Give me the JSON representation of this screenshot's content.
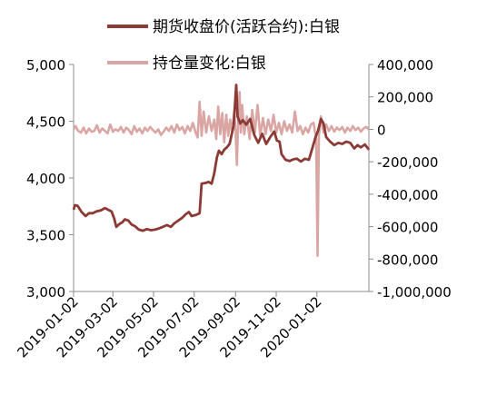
{
  "chart_data": {
    "type": "line",
    "title": "",
    "legend_position": "top",
    "grid": false,
    "x_axis": {
      "type": "date",
      "range": [
        "2019-01-02",
        "2020-03-20"
      ],
      "tick_labels": [
        "2019-01-02",
        "2019-03-02",
        "2019-05-02",
        "2019-07-02",
        "2019-09-02",
        "2019-11-02",
        "2020-01-02"
      ]
    },
    "y_left": {
      "range": [
        3000,
        5000
      ],
      "tick_labels": [
        "3,000",
        "3,500",
        "4,000",
        "4,500",
        "5,000"
      ]
    },
    "y_right": {
      "range": [
        -1000000,
        400000
      ],
      "tick_labels": [
        "-1,000,000",
        "-800,000",
        "-600,000",
        "-400,000",
        "-200,000",
        "0",
        "200,000",
        "400,000"
      ]
    },
    "series": [
      {
        "name": "期货收盘价(活跃合约):白银",
        "axis": "left",
        "color": "#8B3A36",
        "points": [
          [
            "2019-01-02",
            3720
          ],
          [
            "2019-01-04",
            3760
          ],
          [
            "2019-01-08",
            3755
          ],
          [
            "2019-01-14",
            3700
          ],
          [
            "2019-01-20",
            3665
          ],
          [
            "2019-01-25",
            3690
          ],
          [
            "2019-01-31",
            3690
          ],
          [
            "2019-02-05",
            3705
          ],
          [
            "2019-02-12",
            3715
          ],
          [
            "2019-02-18",
            3735
          ],
          [
            "2019-02-23",
            3720
          ],
          [
            "2019-02-28",
            3705
          ],
          [
            "2019-03-04",
            3640
          ],
          [
            "2019-03-07",
            3570
          ],
          [
            "2019-03-12",
            3595
          ],
          [
            "2019-03-16",
            3610
          ],
          [
            "2019-03-20",
            3635
          ],
          [
            "2019-03-25",
            3625
          ],
          [
            "2019-03-30",
            3590
          ],
          [
            "2019-04-04",
            3575
          ],
          [
            "2019-04-10",
            3545
          ],
          [
            "2019-04-16",
            3535
          ],
          [
            "2019-04-22",
            3550
          ],
          [
            "2019-04-28",
            3540
          ],
          [
            "2019-05-04",
            3545
          ],
          [
            "2019-05-10",
            3555
          ],
          [
            "2019-05-16",
            3570
          ],
          [
            "2019-05-22",
            3585
          ],
          [
            "2019-05-28",
            3570
          ],
          [
            "2019-06-02",
            3600
          ],
          [
            "2019-06-08",
            3625
          ],
          [
            "2019-06-14",
            3650
          ],
          [
            "2019-06-19",
            3680
          ],
          [
            "2019-06-24",
            3700
          ],
          [
            "2019-06-28",
            3665
          ],
          [
            "2019-07-05",
            3675
          ],
          [
            "2019-07-10",
            3690
          ],
          [
            "2019-07-13",
            3950
          ],
          [
            "2019-07-18",
            3955
          ],
          [
            "2019-07-24",
            3965
          ],
          [
            "2019-07-28",
            3950
          ],
          [
            "2019-08-01",
            4040
          ],
          [
            "2019-08-05",
            4180
          ],
          [
            "2019-08-08",
            4240
          ],
          [
            "2019-08-12",
            4210
          ],
          [
            "2019-08-16",
            4250
          ],
          [
            "2019-08-20",
            4270
          ],
          [
            "2019-08-24",
            4300
          ],
          [
            "2019-08-27",
            4380
          ],
          [
            "2019-08-30",
            4460
          ],
          [
            "2019-09-03",
            4820
          ],
          [
            "2019-09-05",
            4540
          ],
          [
            "2019-09-09",
            4480
          ],
          [
            "2019-09-13",
            4510
          ],
          [
            "2019-09-18",
            4470
          ],
          [
            "2019-09-24",
            4520
          ],
          [
            "2019-09-30",
            4380
          ],
          [
            "2019-10-06",
            4310
          ],
          [
            "2019-10-12",
            4390
          ],
          [
            "2019-10-18",
            4300
          ],
          [
            "2019-10-24",
            4360
          ],
          [
            "2019-10-30",
            4410
          ],
          [
            "2019-11-03",
            4330
          ],
          [
            "2019-11-07",
            4320
          ],
          [
            "2019-11-10",
            4210
          ],
          [
            "2019-11-16",
            4160
          ],
          [
            "2019-11-22",
            4150
          ],
          [
            "2019-11-28",
            4165
          ],
          [
            "2019-12-03",
            4170
          ],
          [
            "2019-12-09",
            4145
          ],
          [
            "2019-12-15",
            4170
          ],
          [
            "2019-12-21",
            4160
          ],
          [
            "2019-12-27",
            4280
          ],
          [
            "2019-12-31",
            4360
          ],
          [
            "2020-01-04",
            4420
          ],
          [
            "2020-01-08",
            4520
          ],
          [
            "2020-01-12",
            4480
          ],
          [
            "2020-01-16",
            4360
          ],
          [
            "2020-01-22",
            4320
          ],
          [
            "2020-01-28",
            4290
          ],
          [
            "2020-02-03",
            4310
          ],
          [
            "2020-02-09",
            4300
          ],
          [
            "2020-02-15",
            4320
          ],
          [
            "2020-02-21",
            4310
          ],
          [
            "2020-02-27",
            4260
          ],
          [
            "2020-03-03",
            4290
          ],
          [
            "2020-03-08",
            4270
          ],
          [
            "2020-03-14",
            4295
          ],
          [
            "2020-03-20",
            4250
          ]
        ]
      },
      {
        "name": "持仓量变化:白银",
        "axis": "right",
        "color": "#D9A6A4",
        "points": [
          [
            "2019-01-02",
            0
          ],
          [
            "2019-01-05",
            20000
          ],
          [
            "2019-01-09",
            -10000
          ],
          [
            "2019-01-13",
            -20000
          ],
          [
            "2019-01-17",
            10000
          ],
          [
            "2019-01-21",
            -25000
          ],
          [
            "2019-01-25",
            5000
          ],
          [
            "2019-01-29",
            -15000
          ],
          [
            "2019-02-02",
            -10000
          ],
          [
            "2019-02-06",
            25000
          ],
          [
            "2019-02-10",
            -20000
          ],
          [
            "2019-02-14",
            5000
          ],
          [
            "2019-02-18",
            -10000
          ],
          [
            "2019-02-22",
            -25000
          ],
          [
            "2019-02-26",
            30000
          ],
          [
            "2019-03-02",
            -15000
          ],
          [
            "2019-03-06",
            0
          ],
          [
            "2019-03-10",
            -10000
          ],
          [
            "2019-03-14",
            15000
          ],
          [
            "2019-03-18",
            -20000
          ],
          [
            "2019-03-22",
            10000
          ],
          [
            "2019-03-26",
            -5000
          ],
          [
            "2019-03-30",
            -30000
          ],
          [
            "2019-04-03",
            20000
          ],
          [
            "2019-04-07",
            -15000
          ],
          [
            "2019-04-11",
            5000
          ],
          [
            "2019-04-15",
            -25000
          ],
          [
            "2019-04-19",
            10000
          ],
          [
            "2019-04-23",
            -10000
          ],
          [
            "2019-04-27",
            15000
          ],
          [
            "2019-05-01",
            -5000
          ],
          [
            "2019-05-05",
            -20000
          ],
          [
            "2019-05-09",
            0
          ],
          [
            "2019-05-13",
            -35000
          ],
          [
            "2019-05-17",
            -15000
          ],
          [
            "2019-05-21",
            10000
          ],
          [
            "2019-05-25",
            -10000
          ],
          [
            "2019-05-29",
            20000
          ],
          [
            "2019-06-02",
            -20000
          ],
          [
            "2019-06-06",
            30000
          ],
          [
            "2019-06-10",
            -5000
          ],
          [
            "2019-06-14",
            15000
          ],
          [
            "2019-06-18",
            -25000
          ],
          [
            "2019-06-22",
            20000
          ],
          [
            "2019-06-26",
            -10000
          ],
          [
            "2019-06-30",
            40000
          ],
          [
            "2019-07-04",
            -20000
          ],
          [
            "2019-07-07",
            -50000
          ],
          [
            "2019-07-10",
            170000
          ],
          [
            "2019-07-13",
            -40000
          ],
          [
            "2019-07-16",
            110000
          ],
          [
            "2019-07-20",
            -20000
          ],
          [
            "2019-07-24",
            80000
          ],
          [
            "2019-07-28",
            -10000
          ],
          [
            "2019-08-01",
            60000
          ],
          [
            "2019-08-04",
            -60000
          ],
          [
            "2019-08-07",
            140000
          ],
          [
            "2019-08-10",
            -30000
          ],
          [
            "2019-08-13",
            100000
          ],
          [
            "2019-08-16",
            -80000
          ],
          [
            "2019-08-19",
            90000
          ],
          [
            "2019-08-22",
            -40000
          ],
          [
            "2019-08-25",
            60000
          ],
          [
            "2019-08-28",
            -20000
          ],
          [
            "2019-08-31",
            110000
          ],
          [
            "2019-09-02",
            -10000
          ],
          [
            "2019-09-04",
            -220000
          ],
          [
            "2019-09-06",
            60000
          ],
          [
            "2019-09-08",
            230000
          ],
          [
            "2019-09-10",
            -20000
          ],
          [
            "2019-09-12",
            150000
          ],
          [
            "2019-09-15",
            -30000
          ],
          [
            "2019-09-19",
            80000
          ],
          [
            "2019-09-23",
            -60000
          ],
          [
            "2019-09-27",
            120000
          ],
          [
            "2019-10-01",
            -20000
          ],
          [
            "2019-10-05",
            150000
          ],
          [
            "2019-10-09",
            -40000
          ],
          [
            "2019-10-13",
            70000
          ],
          [
            "2019-10-17",
            -30000
          ],
          [
            "2019-10-21",
            60000
          ],
          [
            "2019-10-25",
            -10000
          ],
          [
            "2019-10-29",
            90000
          ],
          [
            "2019-11-02",
            -20000
          ],
          [
            "2019-11-06",
            40000
          ],
          [
            "2019-11-10",
            -30000
          ],
          [
            "2019-11-14",
            50000
          ],
          [
            "2019-11-18",
            -10000
          ],
          [
            "2019-11-22",
            30000
          ],
          [
            "2019-11-26",
            -20000
          ],
          [
            "2019-11-30",
            110000
          ],
          [
            "2019-12-04",
            -10000
          ],
          [
            "2019-12-08",
            20000
          ],
          [
            "2019-12-12",
            -30000
          ],
          [
            "2019-12-16",
            10000
          ],
          [
            "2019-12-20",
            -20000
          ],
          [
            "2019-12-24",
            30000
          ],
          [
            "2019-12-28",
            40000
          ],
          [
            "2020-01-01",
            -60000
          ],
          [
            "2020-01-03",
            -780000
          ],
          [
            "2020-01-05",
            -40000
          ],
          [
            "2020-01-08",
            80000
          ],
          [
            "2020-01-12",
            -20000
          ],
          [
            "2020-01-16",
            30000
          ],
          [
            "2020-01-20",
            -10000
          ],
          [
            "2020-01-24",
            20000
          ],
          [
            "2020-01-28",
            -15000
          ],
          [
            "2020-02-01",
            10000
          ],
          [
            "2020-02-05",
            -5000
          ],
          [
            "2020-02-09",
            15000
          ],
          [
            "2020-02-13",
            -20000
          ],
          [
            "2020-02-17",
            10000
          ],
          [
            "2020-02-21",
            -10000
          ],
          [
            "2020-02-25",
            20000
          ],
          [
            "2020-02-29",
            -5000
          ],
          [
            "2020-03-04",
            10000
          ],
          [
            "2020-03-08",
            -15000
          ],
          [
            "2020-03-12",
            5000
          ],
          [
            "2020-03-16",
            15000
          ],
          [
            "2020-03-20",
            0
          ]
        ]
      }
    ]
  }
}
